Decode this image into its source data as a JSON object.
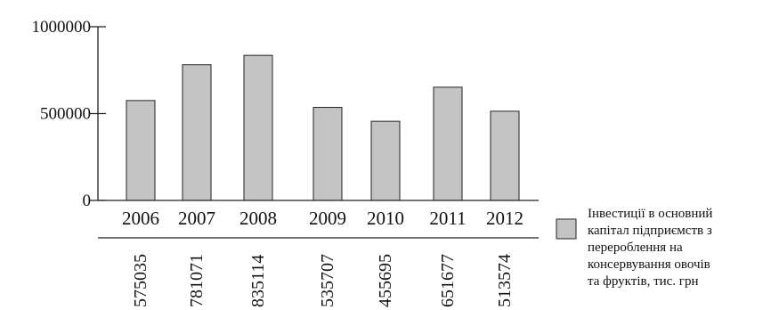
{
  "chart_data": {
    "type": "bar",
    "categories": [
      "2006",
      "2007",
      "2008",
      "2009",
      "2010",
      "2011",
      "2012"
    ],
    "series": [
      {
        "name": "Інвестиції в основний капітал підприємств з перероблення на консервування овочів та фруктів, тис. грн",
        "values": [
          575035,
          781071,
          835114,
          535707,
          455695,
          651677,
          513574
        ],
        "color": "#c4c4c4"
      }
    ],
    "data_labels": [
      "575035",
      "781071",
      "835114",
      "535707",
      "455695",
      "651677",
      "513574"
    ],
    "yticks": [
      {
        "value": 0,
        "label": "0"
      },
      {
        "value": 500000,
        "label": "500000"
      },
      {
        "value": 1000000,
        "label": "1000000"
      }
    ],
    "ylim": [
      0,
      1000000
    ],
    "title": "",
    "xlabel": "",
    "ylabel": "",
    "grid": false,
    "legend": {
      "position": "right",
      "lines": [
        "Інвестиції в основний",
        "капітал підприємств з",
        "перероблення на",
        "консервування овочів",
        "та фруктів, тис. грн"
      ]
    }
  }
}
